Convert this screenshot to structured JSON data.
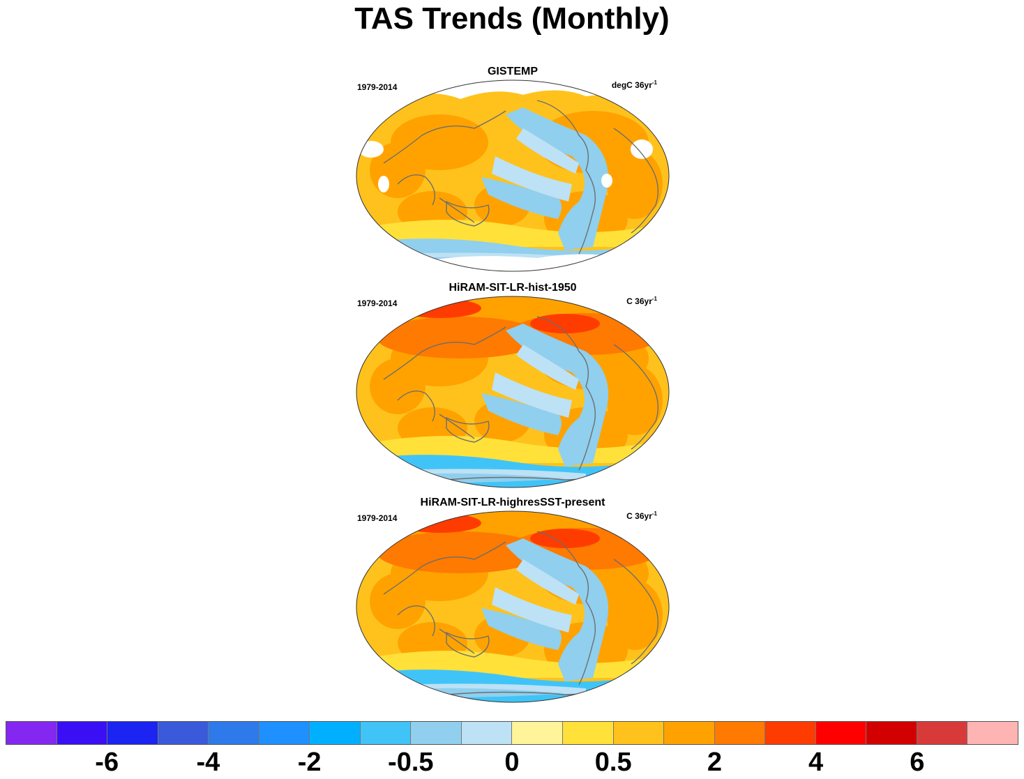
{
  "title": "TAS Trends (Monthly)",
  "panels": [
    {
      "title": "GISTEMP",
      "left": "1979-2014",
      "right_unit": "degC 36yr",
      "right_sup": "-1",
      "style": "obs"
    },
    {
      "title": "HiRAM-SIT-LR-hist-1950",
      "left": "1979-2014",
      "right_unit": "C 36yr",
      "right_sup": "-1",
      "style": "model"
    },
    {
      "title": "HiRAM-SIT-LR-highresSST-present",
      "left": "1979-2014",
      "right_unit": "C 36yr",
      "right_sup": "-1",
      "style": "model"
    }
  ],
  "colorbar": {
    "colors": [
      "#8427f0",
      "#3a0ff5",
      "#1b24f0",
      "#3a5adb",
      "#2e7aeb",
      "#1e90ff",
      "#00b0ff",
      "#40c4f7",
      "#90cfee",
      "#bde1f5",
      "#fff49a",
      "#ffe13a",
      "#ffc21c",
      "#ffa200",
      "#ff7a00",
      "#ff3c00",
      "#ff0000",
      "#d20000",
      "#d83a3a",
      "#ffb4b4"
    ],
    "labels": [
      "-6",
      "-4",
      "-2",
      "-0.5",
      "0",
      "0.5",
      "2",
      "4",
      "6"
    ],
    "label_after_box": [
      2,
      4,
      6,
      8,
      10,
      12,
      14,
      16,
      18
    ]
  },
  "legend_palette": {
    "warm_strong": "#ff7a00",
    "warm": "#ffa200",
    "warm_light": "#ffc21c",
    "yellow": "#ffe13a",
    "pale": "#fff49a",
    "cool_pale": "#bde1f5",
    "cool": "#90cfee",
    "cool_strong": "#40c4f7",
    "red": "#ff3c00",
    "land_line": "#6e6e6e"
  }
}
